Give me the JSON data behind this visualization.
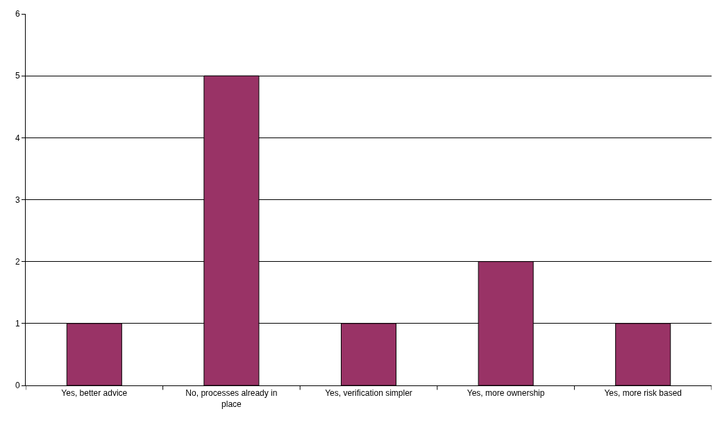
{
  "chart_data": {
    "type": "bar",
    "categories": [
      "Yes, better advice",
      "No, processes already in place",
      "Yes, verification simpler",
      "Yes, more ownership",
      "Yes, more risk based"
    ],
    "values": [
      1,
      5,
      1,
      2,
      1
    ],
    "color": "#993366",
    "ylim": [
      0,
      6
    ],
    "yticks": [
      0,
      1,
      2,
      3,
      4,
      5,
      6
    ],
    "grid": "y",
    "legend": false
  }
}
